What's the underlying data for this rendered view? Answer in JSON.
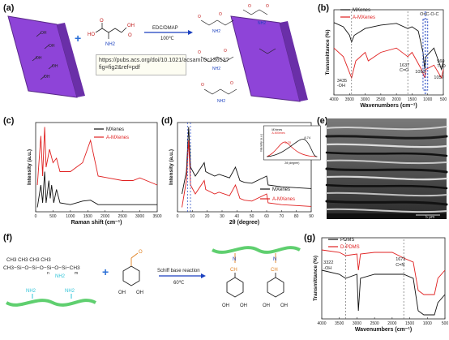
{
  "panel_labels": [
    "(a)",
    "(b)",
    "(c)",
    "(d)",
    "(e)",
    "(f)",
    "(g)"
  ],
  "panel_a": {
    "reagent_labels": [
      "NH2",
      "O",
      "OH",
      "HO",
      "O"
    ],
    "arrow_top": "EDC/DMAP",
    "arrow_bottom": "100℃",
    "tooltip": "https://pubs.acs.org/doi/10.1021/acsami.0c13653?fig=fig2&ref=pdf",
    "colors": {
      "sheet": "#8e44d8",
      "plus": "#2a6fd6"
    }
  },
  "panel_f": {
    "pdms_labels": [
      "CH3",
      "CH3",
      "CH3",
      "CH3",
      "CH3",
      "CH3",
      "NH2",
      "n",
      "m"
    ],
    "pdms_line1": "CH3  CH3  CH3  CH3",
    "pdms_line2": "CH3−Si−O−Si−O−Si−O−Si−CH3",
    "amine": "NH2",
    "aldehyde": "O",
    "oh1": "OH",
    "oh2": "OH",
    "arrow_top": "Schiff base reaction",
    "arrow_bottom": "60℃",
    "product_labels": [
      "N",
      "N",
      "CH",
      "CH",
      "OH",
      "OH",
      "OH",
      "OH"
    ],
    "colors": {
      "chain": "#5fcf6f",
      "amine": "#2fc4d8",
      "imine": "#e08020"
    }
  },
  "panel_e": {
    "scale_text": "5 μm"
  },
  "chart_data": [
    {
      "id": "b",
      "type": "line",
      "xlabel": "Wavenumbers (cm⁻¹)",
      "ylabel": "Transmittance (%)",
      "x_ticks": [
        "4000",
        "3500",
        "3000",
        "2500",
        "2000",
        "1500",
        "1000",
        "500"
      ],
      "xlim": [
        4000,
        500
      ],
      "series": [
        {
          "name": "MXenes",
          "color": "#111111",
          "x": [
            4000,
            3700,
            3500,
            3435,
            3350,
            3000,
            2500,
            2000,
            1637,
            1500,
            1300,
            1150,
            1093,
            1057,
            800,
            560,
            500
          ],
          "y": [
            0.85,
            0.8,
            0.7,
            0.62,
            0.7,
            0.78,
            0.82,
            0.84,
            0.78,
            0.8,
            0.75,
            0.5,
            0.3,
            0.45,
            0.55,
            0.3,
            0.4
          ]
        },
        {
          "name": "A-MXenes",
          "color": "#e02020",
          "x": [
            4000,
            3700,
            3435,
            3300,
            3000,
            2900,
            2500,
            2000,
            1637,
            1500,
            1200,
            1093,
            1057,
            800,
            560,
            500
          ],
          "y": [
            0.55,
            0.45,
            0.2,
            0.4,
            0.5,
            0.4,
            0.5,
            0.55,
            0.45,
            0.5,
            0.3,
            0.2,
            0.3,
            0.35,
            0.2,
            0.3
          ]
        }
      ],
      "annotations": [
        "O=C-O-C",
        "3435",
        "-OH",
        "1637",
        "C=O",
        "1093",
        "560",
        "Ti-O",
        "1057"
      ]
    },
    {
      "id": "c",
      "type": "line",
      "xlabel": "Raman shift (cm⁻¹)",
      "ylabel": "Intensity (a.u.)",
      "x_ticks": [
        "0",
        "500",
        "1000",
        "1500",
        "2000",
        "2500",
        "3000",
        "3500"
      ],
      "xlim": [
        0,
        3500
      ],
      "series": [
        {
          "name": "MXenes",
          "color": "#111111",
          "x": [
            50,
            150,
            200,
            260,
            300,
            380,
            420,
            460,
            520,
            600,
            700,
            1000,
            1350,
            1580,
            1800,
            2500,
            3000,
            3500
          ],
          "y": [
            0.05,
            0.3,
            0.1,
            0.45,
            0.1,
            0.35,
            0.15,
            0.3,
            0.1,
            0.25,
            0.1,
            0.08,
            0.12,
            0.13,
            0.08,
            0.08,
            0.08,
            0.08
          ]
        },
        {
          "name": "A-MXenes",
          "color": "#e02020",
          "x": [
            50,
            150,
            200,
            260,
            300,
            400,
            500,
            600,
            700,
            1000,
            1350,
            1580,
            1800,
            2500,
            2800,
            3000,
            3500
          ],
          "y": [
            0.3,
            0.85,
            0.4,
            0.95,
            0.5,
            0.7,
            0.55,
            0.6,
            0.45,
            0.45,
            0.55,
            0.8,
            0.4,
            0.35,
            0.35,
            0.38,
            0.3
          ]
        }
      ]
    },
    {
      "id": "d",
      "type": "line",
      "xlabel": "2θ (degree)",
      "ylabel": "Intensity (a.u.)",
      "x_ticks": [
        "0",
        "10",
        "20",
        "30",
        "40",
        "50",
        "60",
        "70",
        "80",
        "90"
      ],
      "xlim": [
        0,
        90
      ],
      "series": [
        {
          "name": "MXenes",
          "color": "#111111",
          "x": [
            3,
            6,
            7.5,
            8.8,
            12,
            18,
            19,
            25,
            28,
            35,
            39,
            42,
            45,
            50,
            60,
            61,
            70,
            80,
            90
          ],
          "y": [
            0.2,
            0.45,
            0.95,
            0.5,
            0.4,
            0.55,
            0.45,
            0.4,
            0.42,
            0.38,
            0.5,
            0.35,
            0.33,
            0.32,
            0.4,
            0.3,
            0.28,
            0.27,
            0.26
          ]
        },
        {
          "name": "A-MXenes",
          "color": "#e02020",
          "x": [
            3,
            6,
            7.5,
            8.8,
            12,
            18,
            19,
            25,
            28,
            35,
            39,
            42,
            45,
            50,
            60,
            61,
            70,
            80,
            90
          ],
          "y": [
            0.05,
            0.35,
            0.8,
            0.3,
            0.2,
            0.35,
            0.25,
            0.2,
            0.22,
            0.18,
            0.3,
            0.15,
            0.13,
            0.12,
            0.2,
            0.1,
            0.08,
            0.07,
            0.06
          ]
        }
      ],
      "inset": {
        "ylabel": "Intensity (a.u.)",
        "xlabel": "2θ (degree)",
        "labels": [
          "6.70",
          "8.74"
        ],
        "series_names": [
          "MXenes",
          "A-MXenes"
        ]
      }
    },
    {
      "id": "g",
      "type": "line",
      "xlabel": "Wavenumbers (cm⁻¹)",
      "ylabel": "Transmittance (%)",
      "x_ticks": [
        "4000",
        "3500",
        "3000",
        "2500",
        "2000",
        "1500",
        "1000",
        "500"
      ],
      "xlim": [
        4000,
        500
      ],
      "series": [
        {
          "name": "PDMS",
          "color": "#111111",
          "x": [
            4000,
            3500,
            3322,
            3000,
            2960,
            2900,
            2500,
            2000,
            1671,
            1400,
            1260,
            1100,
            1020,
            800,
            700,
            500
          ],
          "y": [
            0.6,
            0.55,
            0.5,
            0.55,
            0.1,
            0.5,
            0.55,
            0.55,
            0.55,
            0.5,
            0.1,
            0.05,
            0.05,
            0.05,
            0.2,
            0.3
          ]
        },
        {
          "name": "D-PDMS",
          "color": "#e02020",
          "x": [
            4000,
            3500,
            3322,
            3000,
            2960,
            2900,
            2500,
            2000,
            1671,
            1400,
            1260,
            1100,
            1020,
            800,
            700,
            500
          ],
          "y": [
            0.85,
            0.82,
            0.78,
            0.8,
            0.6,
            0.8,
            0.82,
            0.82,
            0.75,
            0.7,
            0.35,
            0.3,
            0.3,
            0.3,
            0.5,
            0.6
          ]
        }
      ],
      "annotations": [
        "3322",
        "-OH",
        "1671",
        "C=N"
      ]
    }
  ]
}
